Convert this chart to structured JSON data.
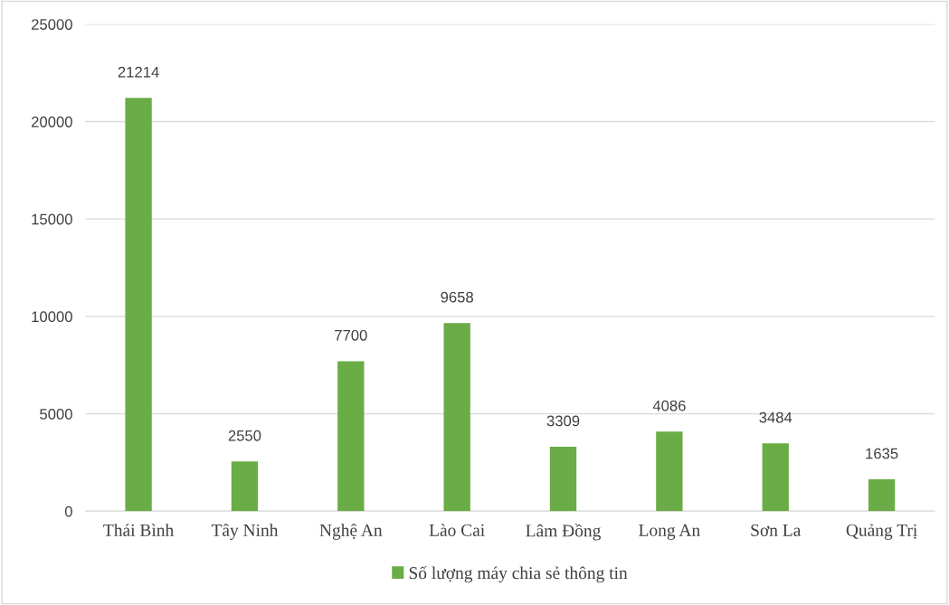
{
  "chart_data": {
    "type": "bar",
    "categories": [
      "Thái Bình",
      "Tây Ninh",
      "Nghệ An",
      "Lào Cai",
      "Lâm Đồng",
      "Long An",
      "Sơn La",
      "Quảng Trị"
    ],
    "series": [
      {
        "name": "Số lượng máy chia sẻ thông tin",
        "color": "#6aac46",
        "values": [
          21214,
          2550,
          7700,
          9658,
          3309,
          4086,
          3484,
          1635
        ]
      }
    ],
    "ylim": [
      0,
      25000
    ],
    "yticks": [
      0,
      5000,
      10000,
      15000,
      20000,
      25000
    ],
    "grid": "y",
    "legend": "bottom",
    "data_labels": true
  }
}
